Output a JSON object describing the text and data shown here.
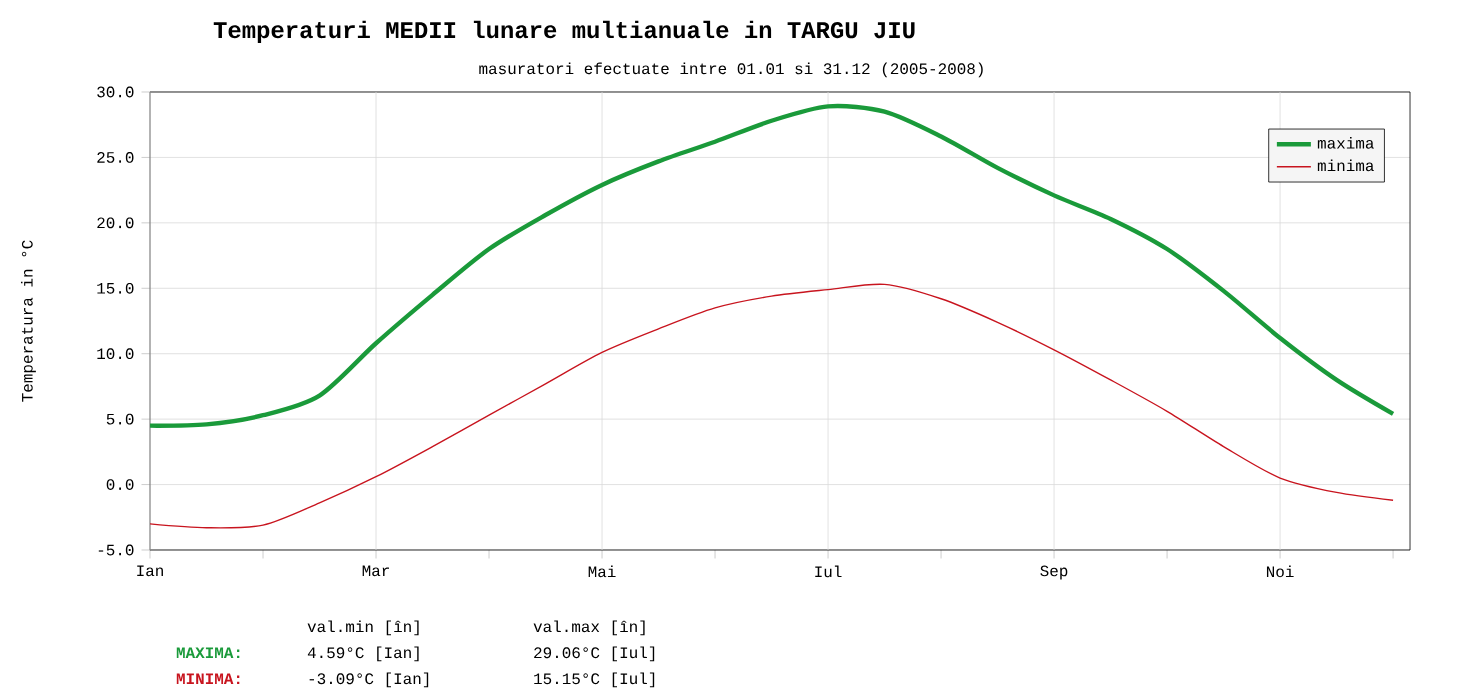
{
  "chart_data": {
    "type": "line",
    "title": "Temperaturi MEDII lunare multianuale in TARGU JIU",
    "subtitle": "masuratori efectuate intre 01.01 si 31.12 (2005-2008)",
    "ylabel": "Temperatura in °C",
    "categories": [
      "Ian",
      null,
      null,
      null,
      "Mar",
      null,
      null,
      null,
      "Mai",
      null,
      null,
      null,
      "Iul",
      null,
      null,
      null,
      "Sep",
      null,
      null,
      null,
      "Noi",
      null,
      null
    ],
    "ylim": [
      -5,
      30
    ],
    "yticks": [
      {
        "value": -5,
        "label": "-5.0"
      },
      {
        "value": 0,
        "label": "0.0"
      },
      {
        "value": 5,
        "label": "5.0"
      },
      {
        "value": 10,
        "label": "10.0"
      },
      {
        "value": 15,
        "label": "15.0"
      },
      {
        "value": 20,
        "label": "20.0"
      },
      {
        "value": 25,
        "label": "25.0"
      },
      {
        "value": 30,
        "label": "30.0"
      }
    ],
    "grid": true,
    "legend": "top right",
    "marker": "none",
    "series": [
      {
        "name": "maxima",
        "color": "#1a9a3a",
        "values": [
          4.5,
          4.6,
          5.3,
          6.8,
          10.8,
          14.5,
          18.0,
          20.6,
          22.9,
          24.7,
          26.2,
          27.8,
          28.9,
          28.5,
          26.6,
          24.2,
          22.1,
          20.3,
          18.0,
          14.8,
          11.2,
          8.0,
          5.4
        ]
      },
      {
        "name": "minima",
        "color": "#c8141e",
        "values": [
          -3.0,
          -3.3,
          -3.1,
          -1.4,
          0.6,
          2.9,
          5.3,
          7.7,
          10.1,
          11.9,
          13.5,
          14.4,
          14.9,
          15.3,
          14.2,
          12.4,
          10.3,
          8.0,
          5.6,
          2.9,
          0.5,
          -0.6,
          -1.2
        ]
      }
    ],
    "annotations": [
      "val.min [în]",
      "val.max [în]",
      "MAXIMA:",
      "4.59°C [Ian]",
      "29.06°C [Iul]",
      "MINIMA:",
      "-3.09°C [Ian]",
      "15.15°C [Iul]"
    ]
  }
}
